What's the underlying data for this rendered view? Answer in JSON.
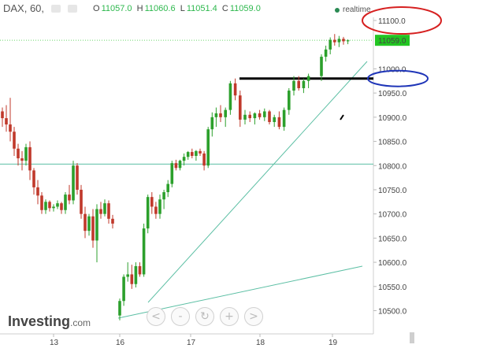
{
  "header": {
    "symbol": "DAX, 60,",
    "open_label": "O",
    "open": "11057.0",
    "high_label": "H",
    "high": "11060.6",
    "low_label": "L",
    "low": "11051.4",
    "close_label": "C",
    "close": "11059.0",
    "realtime": "realtime"
  },
  "brand": {
    "name": "Investing",
    "suffix": ".com"
  },
  "zoom_controls": [
    "<",
    "-",
    "↻",
    "+",
    ">"
  ],
  "colors": {
    "up": "#2ca02c",
    "down": "#c0392b",
    "trendline": "#5cbfa4",
    "price_badge": "#22c622",
    "red_annotation": "#d62020",
    "blue_annotation": "#1f35b8",
    "level_line": "#000000"
  },
  "chart_data": {
    "type": "candlestick",
    "instrument": "DAX",
    "timeframe": "60",
    "ylim": [
      10450,
      11160
    ],
    "y_ticks": [
      "11100.0",
      "11000.0",
      "10950.0",
      "10900.0",
      "10850.0",
      "10800.0",
      "10750.0",
      "10700.0",
      "10650.0",
      "10600.0",
      "10550.0",
      "10500.0"
    ],
    "x_ticks": [
      "13",
      "16",
      "17",
      "18",
      "19"
    ],
    "last_price": "11059.0",
    "annotations": {
      "support_line": 10803,
      "dotted_price_line": 11059,
      "resistance_level": 10980,
      "red_circle_level": 11100,
      "blue_circle_level": 10980
    },
    "candles": [
      [
        10912,
        10920,
        10880,
        10898
      ],
      [
        10898,
        10925,
        10870,
        10885
      ],
      [
        10885,
        10940,
        10850,
        10870
      ],
      [
        10870,
        10880,
        10820,
        10835
      ],
      [
        10835,
        10845,
        10800,
        10815
      ],
      [
        10815,
        10830,
        10790,
        10810
      ],
      [
        10810,
        10845,
        10800,
        10838
      ],
      [
        10838,
        10850,
        10770,
        10790
      ],
      [
        10790,
        10795,
        10740,
        10755
      ],
      [
        10755,
        10770,
        10720,
        10738
      ],
      [
        10738,
        10745,
        10700,
        10708
      ],
      [
        10708,
        10730,
        10700,
        10725
      ],
      [
        10725,
        10728,
        10705,
        10712
      ],
      [
        10712,
        10720,
        10705,
        10715
      ],
      [
        10715,
        10728,
        10710,
        10722
      ],
      [
        10722,
        10725,
        10700,
        10708
      ],
      [
        10708,
        10745,
        10700,
        10740
      ],
      [
        10740,
        10760,
        10720,
        10728
      ],
      [
        10728,
        10810,
        10720,
        10800
      ],
      [
        10800,
        10805,
        10740,
        10750
      ],
      [
        10750,
        10760,
        10690,
        10700
      ],
      [
        10700,
        10715,
        10650,
        10665
      ],
      [
        10665,
        10700,
        10655,
        10695
      ],
      [
        10695,
        10710,
        10630,
        10645
      ],
      [
        10645,
        10720,
        10600,
        10710
      ],
      [
        10710,
        10725,
        10690,
        10700
      ],
      [
        10700,
        10730,
        10695,
        10722
      ],
      [
        10722,
        10728,
        10680,
        10690
      ],
      [
        10690,
        10698,
        10670,
        10680
      ],
      [
        10490,
        10525,
        10480,
        10520
      ],
      [
        10520,
        10575,
        10510,
        10570
      ],
      [
        10570,
        10600,
        10560,
        10575
      ],
      [
        10575,
        10595,
        10545,
        10555
      ],
      [
        10555,
        10600,
        10548,
        10592
      ],
      [
        10592,
        10600,
        10570,
        10575
      ],
      [
        10575,
        10680,
        10570,
        10670
      ],
      [
        10670,
        10740,
        10660,
        10735
      ],
      [
        10735,
        10745,
        10700,
        10715
      ],
      [
        10715,
        10725,
        10690,
        10700
      ],
      [
        10700,
        10740,
        10690,
        10730
      ],
      [
        10730,
        10750,
        10710,
        10745
      ],
      [
        10745,
        10770,
        10735,
        10762
      ],
      [
        10762,
        10810,
        10755,
        10805
      ],
      [
        10805,
        10812,
        10790,
        10795
      ],
      [
        10795,
        10812,
        10790,
        10810
      ],
      [
        10810,
        10825,
        10800,
        10818
      ],
      [
        10818,
        10830,
        10812,
        10828
      ],
      [
        10828,
        10835,
        10815,
        10820
      ],
      [
        10820,
        10832,
        10810,
        10830
      ],
      [
        10830,
        10835,
        10820,
        10825
      ],
      [
        10825,
        10830,
        10790,
        10800
      ],
      [
        10800,
        10880,
        10795,
        10875
      ],
      [
        10875,
        10910,
        10860,
        10900
      ],
      [
        10900,
        10920,
        10880,
        10908
      ],
      [
        10908,
        10925,
        10890,
        10900
      ],
      [
        10900,
        10920,
        10880,
        10915
      ],
      [
        10915,
        10975,
        10905,
        10970
      ],
      [
        10970,
        10980,
        10935,
        10945
      ],
      [
        10945,
        10955,
        10880,
        10895
      ],
      [
        10895,
        10915,
        10885,
        10905
      ],
      [
        10905,
        10912,
        10890,
        10898
      ],
      [
        10898,
        10910,
        10885,
        10908
      ],
      [
        10908,
        10915,
        10895,
        10900
      ],
      [
        10900,
        10918,
        10892,
        10912
      ],
      [
        10912,
        10915,
        10885,
        10890
      ],
      [
        10890,
        10905,
        10880,
        10900
      ],
      [
        10900,
        10912,
        10875,
        10880
      ],
      [
        10880,
        10920,
        10872,
        10915
      ],
      [
        10915,
        10960,
        10905,
        10955
      ],
      [
        10955,
        10985,
        10945,
        10975
      ],
      [
        10975,
        10985,
        10955,
        10960
      ],
      [
        10960,
        10980,
        10950,
        10975
      ],
      [
        10975,
        10990,
        10960,
        10985
      ],
      [
        10985,
        11030,
        10975,
        11025
      ],
      [
        11025,
        11048,
        11015,
        11040
      ],
      [
        11040,
        11065,
        11030,
        11060
      ],
      [
        11060,
        11072,
        11048,
        11055
      ],
      [
        11055,
        11068,
        11045,
        11062
      ],
      [
        11062,
        11066,
        11050,
        11057
      ],
      [
        11057,
        11061,
        11051,
        11059
      ]
    ]
  }
}
